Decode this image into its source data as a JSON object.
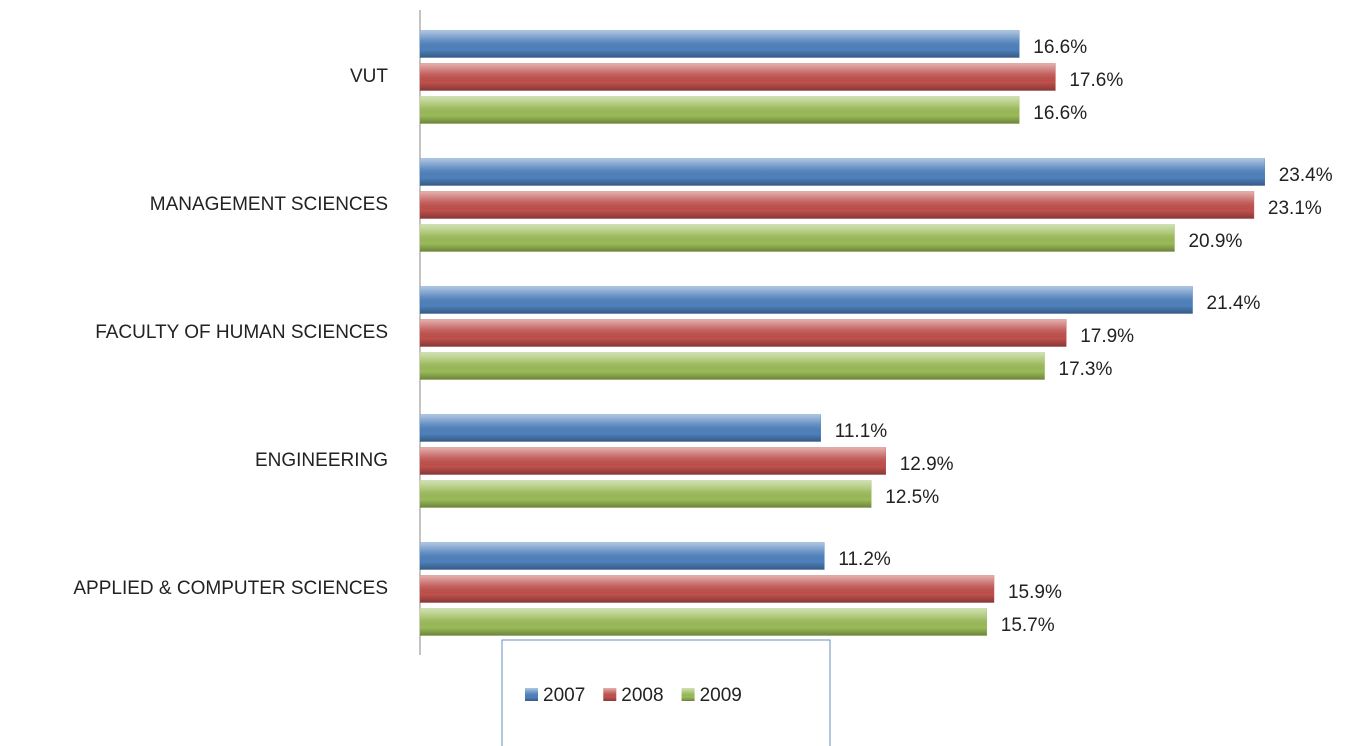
{
  "chart_data": {
    "type": "hbar",
    "categories": [
      "VUT",
      "MANAGEMENT  SCIENCES",
      "FACULTY OF HUMAN  SCIENCES",
      "ENGINEERING",
      "APPLIED & COMPUTER  SCIENCES"
    ],
    "series": [
      {
        "name": "2007",
        "color": "#4f81bd",
        "values": [
          16.6,
          23.4,
          21.4,
          11.1,
          11.2
        ],
        "value_labels": [
          "16.6%",
          "23.4%",
          "21.4%",
          "11.1%",
          "11.2%"
        ]
      },
      {
        "name": "2008",
        "color": "#c0504d",
        "values": [
          17.6,
          23.1,
          17.9,
          12.9,
          15.9
        ],
        "value_labels": [
          "17.6%",
          "23.1%",
          "17.9%",
          "12.9%",
          "15.9%"
        ]
      },
      {
        "name": "2009",
        "color": "#9bbb59",
        "values": [
          16.6,
          20.9,
          17.3,
          12.5,
          15.7
        ],
        "value_labels": [
          "16.6%",
          "20.9%",
          "17.3%",
          "12.5%",
          "15.7%"
        ]
      }
    ],
    "xlim": [
      0,
      25
    ],
    "legend": "bottom"
  }
}
